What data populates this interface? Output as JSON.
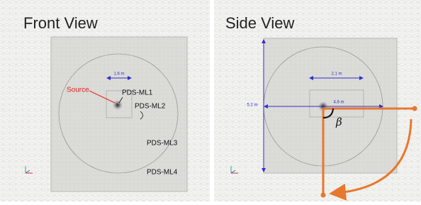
{
  "front_view": {
    "title": "Front View",
    "dimension": "1.6 m",
    "source": "Source",
    "labels": [
      "PDS-ML1",
      "PDS-ML2",
      "PDS-ML3",
      "PDS-ML4"
    ]
  },
  "side_view": {
    "title": "Side View",
    "width_inner": "2.1 m",
    "width_outer": "4.6 m",
    "height": "5.2 m",
    "angle": "β"
  }
}
